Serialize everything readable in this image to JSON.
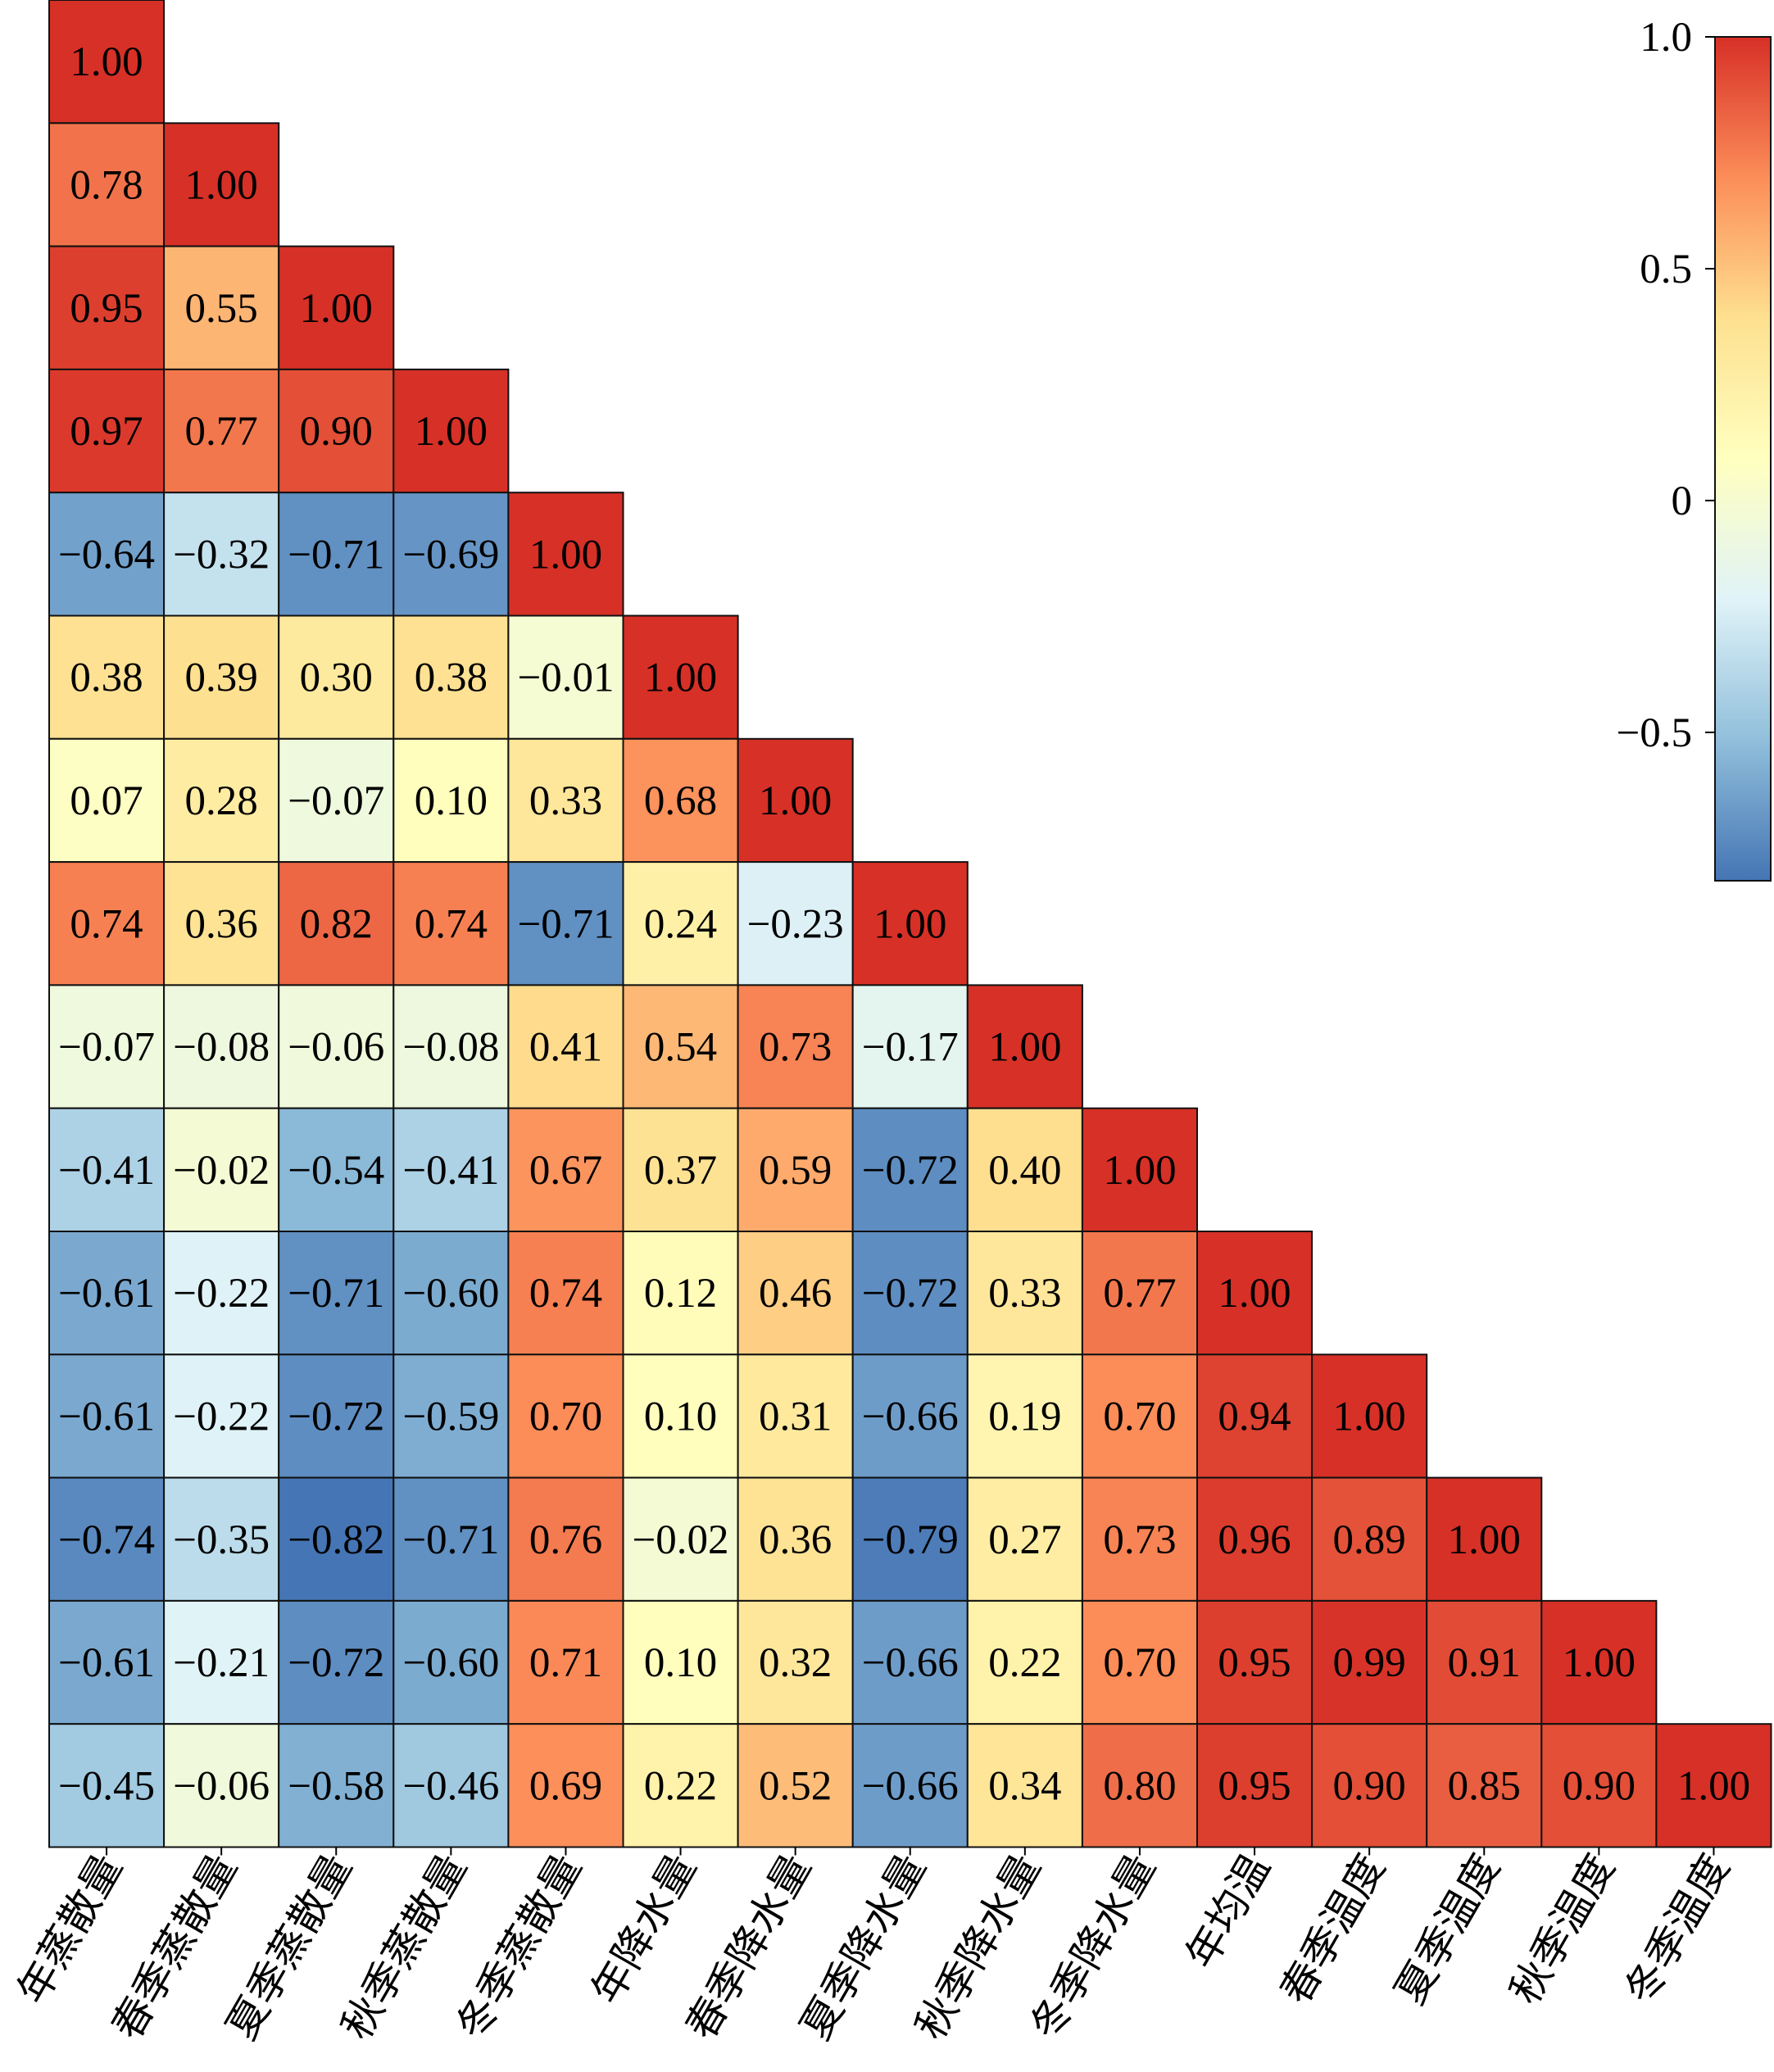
{
  "chart_data": {
    "type": "heatmap",
    "subtype": "lower-triangle correlation matrix",
    "labels": [
      "年蒸散量",
      "春季蒸散量",
      "夏季蒸散量",
      "秋季蒸散量",
      "冬季蒸散量",
      "年降水量",
      "春季降水量",
      "夏季降水量",
      "秋季降水量",
      "冬季降水量",
      "年均温",
      "春季温度",
      "夏季温度",
      "秋季温度",
      "冬季温度"
    ],
    "matrix": [
      [
        1.0
      ],
      [
        0.78,
        1.0
      ],
      [
        0.95,
        0.55,
        1.0
      ],
      [
        0.97,
        0.77,
        0.9,
        1.0
      ],
      [
        -0.64,
        -0.32,
        -0.71,
        -0.69,
        1.0
      ],
      [
        0.38,
        0.39,
        0.3,
        0.38,
        -0.01,
        1.0
      ],
      [
        0.07,
        0.28,
        -0.07,
        0.1,
        0.33,
        0.68,
        1.0
      ],
      [
        0.74,
        0.36,
        0.82,
        0.74,
        -0.71,
        0.24,
        -0.23,
        1.0
      ],
      [
        -0.07,
        -0.08,
        -0.06,
        -0.08,
        0.41,
        0.54,
        0.73,
        -0.17,
        1.0
      ],
      [
        -0.41,
        -0.02,
        -0.54,
        -0.41,
        0.67,
        0.37,
        0.59,
        -0.72,
        0.4,
        1.0
      ],
      [
        -0.61,
        -0.22,
        -0.71,
        -0.6,
        0.74,
        0.12,
        0.46,
        -0.72,
        0.33,
        0.77,
        1.0
      ],
      [
        -0.61,
        -0.22,
        -0.72,
        -0.59,
        0.7,
        0.1,
        0.31,
        -0.66,
        0.19,
        0.7,
        0.94,
        1.0
      ],
      [
        -0.74,
        -0.35,
        -0.82,
        -0.71,
        0.76,
        -0.02,
        0.36,
        -0.79,
        0.27,
        0.73,
        0.96,
        0.89,
        1.0
      ],
      [
        -0.61,
        -0.21,
        -0.72,
        -0.6,
        0.71,
        0.1,
        0.32,
        -0.66,
        0.22,
        0.7,
        0.95,
        0.99,
        0.91,
        1.0
      ],
      [
        -0.45,
        -0.06,
        -0.58,
        -0.46,
        0.69,
        0.22,
        0.52,
        -0.66,
        0.34,
        0.8,
        0.95,
        0.9,
        0.85,
        0.9,
        1.0
      ]
    ],
    "colorbar": {
      "range": [
        -0.82,
        1.0
      ],
      "ticks": [
        1.0,
        0.5,
        0,
        -0.5
      ],
      "tick_labels": [
        "1.0",
        "0.5",
        "0",
        "−0.5"
      ],
      "colormap": "RdYlBu_r",
      "stops": [
        "#4575b4",
        "#91bfdb",
        "#e0f3f8",
        "#ffffbf",
        "#fee090",
        "#fc8d59",
        "#d73027"
      ]
    }
  }
}
